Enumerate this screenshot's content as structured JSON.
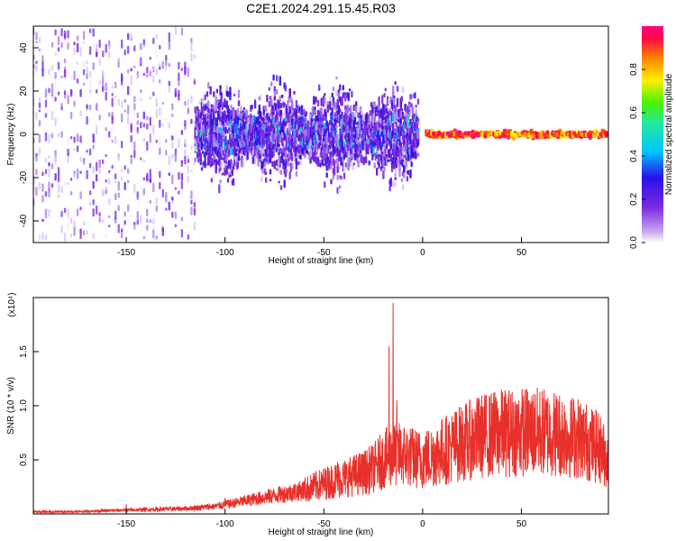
{
  "title": "C2E1.2024.291.15.45.R03",
  "colors": {
    "snr_line": "#e8302a",
    "spec_scale": [
      "#f5ecfb",
      "#d9c3f4",
      "#a97ae8",
      "#7d2be2",
      "#5b12d6",
      "#2a10ea",
      "#0a50ff",
      "#00c6ff",
      "#21e8a0",
      "#4ff200",
      "#c8f000",
      "#ffef00",
      "#ff9d00",
      "#ff3d00",
      "#ff0a46",
      "#ff007f"
    ]
  },
  "chart_data": [
    {
      "type": "heatmap",
      "name": "spectrogram",
      "xlabel": "Height of straight line (km)",
      "ylabel": "Frequency (Hz)",
      "xlim": [
        -197,
        94
      ],
      "ylim": [
        -50,
        50
      ],
      "x_ticks": [
        -150,
        -100,
        -50,
        0,
        50
      ],
      "y_ticks": [
        -40,
        -20,
        0,
        20,
        40
      ],
      "colorbar": {
        "label": "Normalized spectral amplitude",
        "range": [
          0,
          1
        ],
        "ticks": [
          "0.0",
          "0.2",
          "0.4",
          "0.6",
          "0.8"
        ],
        "tick_values": [
          0.0,
          0.2,
          0.4,
          0.6,
          0.8
        ]
      },
      "bands": [
        {
          "x_from": -197,
          "x_to": -115,
          "f_spread": 48,
          "density": "sparse",
          "amplitude_range": [
            0.02,
            0.25
          ]
        },
        {
          "x_from": -115,
          "x_to": -2,
          "f_spread": 30,
          "density": "dense",
          "amplitude_range": [
            0.08,
            0.35
          ]
        },
        {
          "x_from": 2,
          "x_to": 94,
          "f_center": 0,
          "f_spread": 2,
          "density": "narrow",
          "amplitude_range": [
            0.7,
            1.0
          ]
        }
      ]
    },
    {
      "type": "line",
      "name": "snr",
      "xlabel": "Height of straight line (km)",
      "ylabel": "SNR (10 * v/v)",
      "y_multiplier": "(x10⁴)",
      "xlim": [
        -197,
        94
      ],
      "ylim": [
        0,
        2.0
      ],
      "x_ticks": [
        -150,
        -100,
        -50,
        0,
        50
      ],
      "y_ticks": [
        "0.5",
        "1.0",
        "1.5"
      ],
      "y_tick_values": [
        0.5,
        1.0,
        1.5
      ],
      "series": [
        {
          "x": [
            -197,
            -180,
            -160,
            -140,
            -120,
            -105,
            -90,
            -75,
            -60,
            -50,
            -40,
            -30,
            -25,
            -20,
            -15,
            -10,
            -5,
            0,
            10,
            20,
            30,
            40,
            50,
            60,
            70,
            80,
            90,
            94
          ],
          "y": [
            0.02,
            0.02,
            0.03,
            0.04,
            0.05,
            0.07,
            0.12,
            0.17,
            0.22,
            0.28,
            0.33,
            0.38,
            0.42,
            0.5,
            0.55,
            0.55,
            0.52,
            0.5,
            0.58,
            0.66,
            0.72,
            0.75,
            0.76,
            0.76,
            0.74,
            0.7,
            0.6,
            0.48
          ],
          "peaks": [
            {
              "x": -150,
              "y": 0.09
            },
            {
              "x": -100,
              "y": 0.15
            },
            {
              "x": -43,
              "y": 0.48
            },
            {
              "x": -15,
              "y": 1.95
            },
            {
              "x": -17,
              "y": 1.55
            },
            {
              "x": -13,
              "y": 1.05
            },
            {
              "x": 75,
              "y": 1.05
            },
            {
              "x": 88,
              "y": 0.95
            }
          ]
        }
      ]
    }
  ]
}
